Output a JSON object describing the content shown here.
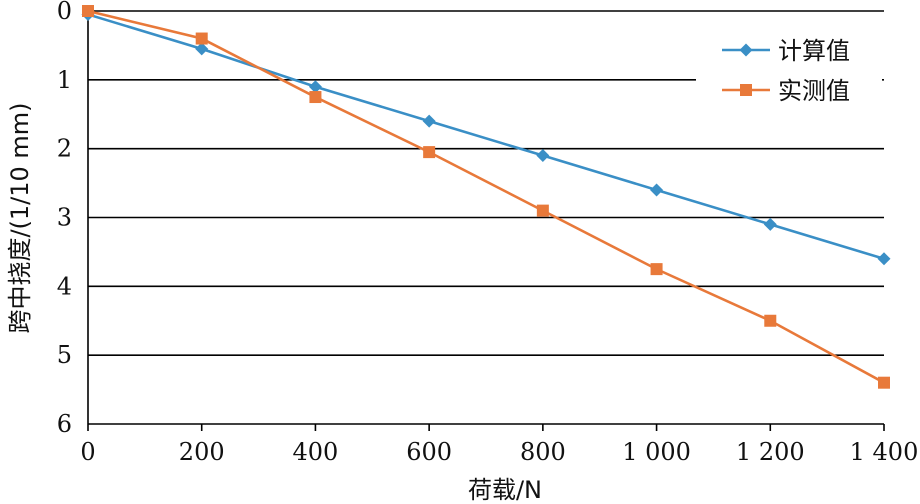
{
  "chart_data": {
    "type": "line",
    "title": "",
    "xlabel": "荷载/N",
    "ylabel": "跨中挠度/(1/10 mm)",
    "x": [
      0,
      200,
      400,
      600,
      800,
      1000,
      1200,
      1400
    ],
    "x_tick_labels": [
      "0",
      "200",
      "400",
      "600",
      "800",
      "1 000",
      "1 200",
      "1 400"
    ],
    "y_tick_labels": [
      "0",
      "1",
      "2",
      "3",
      "4",
      "5",
      "6"
    ],
    "xlim": [
      0,
      1400
    ],
    "ylim": [
      0,
      6
    ],
    "y_inverted": true,
    "grid": "horizontal",
    "legend_position": "top-right",
    "series": [
      {
        "name": "计算值",
        "color": "#3a8fc6",
        "marker": "diamond",
        "values": [
          0.05,
          0.55,
          1.1,
          1.6,
          2.1,
          2.6,
          3.1,
          3.6
        ]
      },
      {
        "name": "实测值",
        "color": "#e8793a",
        "marker": "square",
        "values": [
          0.0,
          0.4,
          1.25,
          2.05,
          2.9,
          3.75,
          4.5,
          5.4
        ]
      }
    ]
  }
}
